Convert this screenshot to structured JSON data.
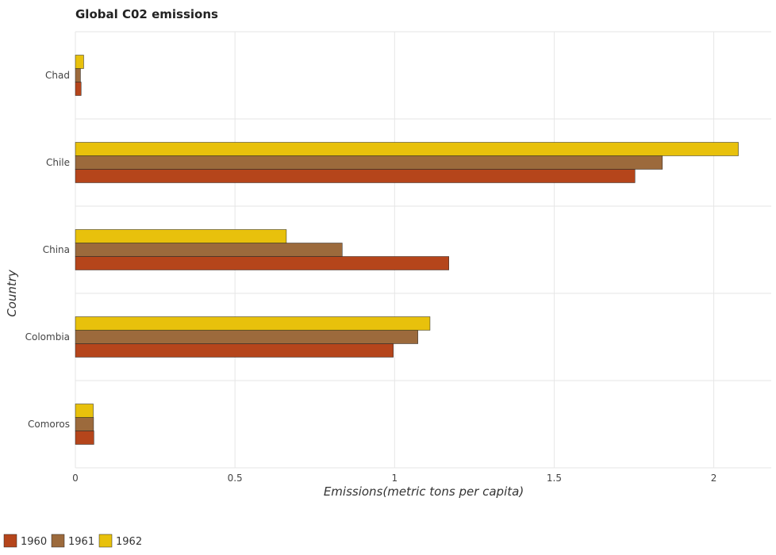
{
  "chart_data": {
    "type": "bar",
    "orientation": "horizontal",
    "title": "Global C02 emissions",
    "xlabel": "Emissions(metric tons per capita)",
    "ylabel": "Country",
    "categories": [
      "Chad",
      "Chile",
      "China",
      "Colombia",
      "Comoros"
    ],
    "series": [
      {
        "name": "1960",
        "color": "#b5451b",
        "values": [
          0.018,
          1.753,
          1.17,
          0.996,
          0.058
        ]
      },
      {
        "name": "1961",
        "color": "#9c6a3c",
        "values": [
          0.016,
          1.839,
          0.836,
          1.073,
          0.057
        ]
      },
      {
        "name": "1962",
        "color": "#e8c10c",
        "values": [
          0.026,
          2.077,
          0.661,
          1.111,
          0.056
        ]
      }
    ],
    "xlim": [
      0,
      2.18
    ],
    "xticks": [
      "0",
      "0.5",
      "1",
      "1.5",
      "2"
    ],
    "grid": true,
    "legend_position": "bottom-left"
  }
}
